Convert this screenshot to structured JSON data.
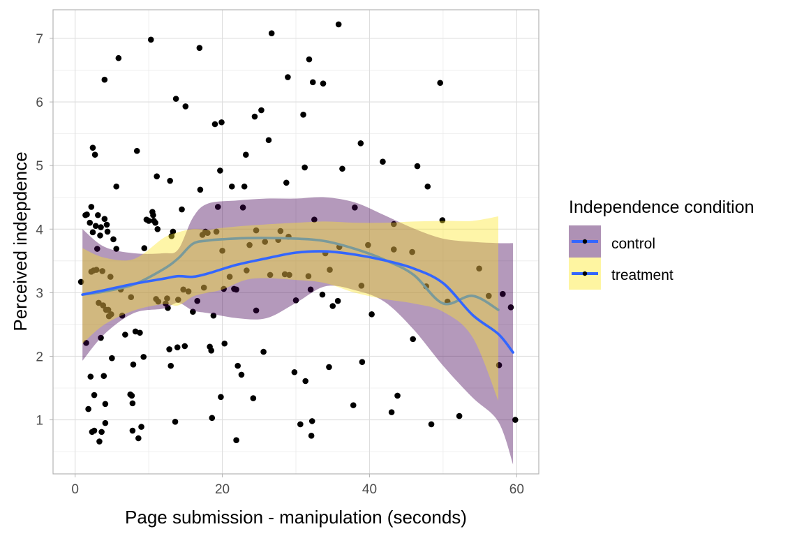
{
  "chart_data": {
    "type": "scatter",
    "xlabel": "Page submission - manipulation (seconds)",
    "ylabel": "Perceived indepdence",
    "xlim": [
      -3,
      63
    ],
    "ylim": [
      0.15,
      7.45
    ],
    "x_ticks": [
      0,
      20,
      40,
      60
    ],
    "y_ticks": [
      1,
      2,
      3,
      4,
      5,
      6,
      7
    ],
    "x_tick_labels": [
      "0",
      "20",
      "40",
      "60"
    ],
    "y_tick_labels": [
      "1",
      "2",
      "3",
      "4",
      "5",
      "6",
      "7"
    ],
    "grid": true,
    "legend": {
      "title": "Independence condition",
      "position": "right",
      "entries": [
        {
          "label": "control",
          "fill": "#440154",
          "fill_opacity": 0.43,
          "line_color": "#3366ff"
        },
        {
          "label": "treatment",
          "fill": "#fde725",
          "fill_opacity": 0.43,
          "line_color": "#3366ff"
        }
      ]
    },
    "point_color": "#000000",
    "points": [
      [
        0.8,
        3.17
      ],
      [
        1.4,
        4.22
      ],
      [
        1.5,
        2.21
      ],
      [
        1.6,
        4.23
      ],
      [
        1.8,
        1.17
      ],
      [
        2.0,
        4.1
      ],
      [
        2.1,
        1.68
      ],
      [
        2.2,
        4.35
      ],
      [
        2.2,
        3.33
      ],
      [
        2.3,
        0.81
      ],
      [
        2.4,
        3.95
      ],
      [
        2.4,
        5.28
      ],
      [
        2.5,
        3.35
      ],
      [
        2.6,
        1.39
      ],
      [
        2.6,
        0.83
      ],
      [
        2.7,
        5.17
      ],
      [
        2.8,
        4.05
      ],
      [
        2.9,
        3.36
      ],
      [
        3.0,
        3.69
      ],
      [
        3.1,
        4.22
      ],
      [
        3.2,
        2.84
      ],
      [
        3.3,
        0.66
      ],
      [
        3.4,
        3.9
      ],
      [
        3.5,
        4.03
      ],
      [
        3.5,
        2.29
      ],
      [
        3.6,
        0.81
      ],
      [
        3.7,
        3.34
      ],
      [
        3.8,
        2.8
      ],
      [
        3.9,
        1.69
      ],
      [
        4.0,
        4.16
      ],
      [
        4.0,
        6.35
      ],
      [
        4.1,
        0.95
      ],
      [
        4.1,
        1.25
      ],
      [
        4.2,
        2.73
      ],
      [
        4.3,
        4.07
      ],
      [
        4.4,
        3.96
      ],
      [
        4.5,
        2.73
      ],
      [
        4.6,
        2.63
      ],
      [
        4.8,
        3.25
      ],
      [
        4.9,
        2.66
      ],
      [
        5.0,
        1.97
      ],
      [
        5.2,
        3.84
      ],
      [
        5.6,
        3.69
      ],
      [
        5.6,
        4.67
      ],
      [
        5.9,
        6.69
      ],
      [
        6.2,
        3.05
      ],
      [
        6.4,
        2.64
      ],
      [
        6.8,
        2.34
      ],
      [
        7.5,
        1.4
      ],
      [
        7.6,
        2.93
      ],
      [
        7.7,
        1.38
      ],
      [
        7.8,
        0.83
      ],
      [
        7.8,
        1.26
      ],
      [
        7.9,
        1.87
      ],
      [
        8.2,
        2.39
      ],
      [
        8.4,
        5.23
      ],
      [
        8.6,
        0.71
      ],
      [
        8.8,
        2.37
      ],
      [
        9.0,
        0.89
      ],
      [
        9.3,
        1.99
      ],
      [
        9.4,
        3.7
      ],
      [
        9.7,
        4.15
      ],
      [
        10.0,
        4.13
      ],
      [
        10.3,
        6.98
      ],
      [
        10.5,
        4.27
      ],
      [
        10.6,
        4.22
      ],
      [
        10.7,
        4.13
      ],
      [
        10.9,
        4.1
      ],
      [
        11.0,
        2.9
      ],
      [
        11.1,
        4.83
      ],
      [
        11.2,
        4.0
      ],
      [
        11.3,
        2.86
      ],
      [
        12.3,
        2.83
      ],
      [
        12.5,
        2.91
      ],
      [
        12.6,
        2.76
      ],
      [
        12.8,
        2.11
      ],
      [
        12.9,
        4.76
      ],
      [
        13.0,
        1.85
      ],
      [
        13.1,
        3.89
      ],
      [
        13.3,
        3.96
      ],
      [
        13.6,
        0.97
      ],
      [
        13.7,
        6.05
      ],
      [
        13.9,
        2.14
      ],
      [
        14.0,
        2.89
      ],
      [
        14.5,
        4.31
      ],
      [
        14.7,
        3.05
      ],
      [
        14.9,
        2.16
      ],
      [
        15.0,
        5.93
      ],
      [
        15.4,
        3.02
      ],
      [
        16.0,
        2.7
      ],
      [
        16.6,
        2.87
      ],
      [
        16.9,
        6.85
      ],
      [
        17.0,
        4.62
      ],
      [
        17.3,
        3.91
      ],
      [
        17.5,
        3.08
      ],
      [
        17.7,
        3.96
      ],
      [
        18.0,
        3.94
      ],
      [
        18.3,
        2.15
      ],
      [
        18.5,
        2.09
      ],
      [
        18.6,
        1.03
      ],
      [
        18.8,
        2.64
      ],
      [
        19.0,
        5.65
      ],
      [
        19.2,
        3.96
      ],
      [
        19.4,
        4.35
      ],
      [
        19.7,
        4.92
      ],
      [
        19.8,
        1.36
      ],
      [
        19.9,
        5.68
      ],
      [
        20.0,
        3.66
      ],
      [
        20.2,
        3.06
      ],
      [
        20.3,
        2.2
      ],
      [
        21.0,
        3.25
      ],
      [
        21.3,
        4.67
      ],
      [
        21.6,
        3.06
      ],
      [
        21.9,
        3.05
      ],
      [
        21.9,
        0.68
      ],
      [
        22.1,
        1.85
      ],
      [
        22.6,
        1.71
      ],
      [
        22.8,
        4.34
      ],
      [
        23.0,
        4.67
      ],
      [
        23.2,
        5.17
      ],
      [
        23.3,
        3.35
      ],
      [
        23.7,
        3.75
      ],
      [
        24.2,
        1.34
      ],
      [
        24.4,
        5.77
      ],
      [
        24.6,
        2.72
      ],
      [
        24.6,
        3.98
      ],
      [
        25.3,
        5.87
      ],
      [
        25.6,
        2.07
      ],
      [
        25.8,
        3.8
      ],
      [
        26.3,
        5.4
      ],
      [
        26.5,
        3.28
      ],
      [
        26.7,
        7.08
      ],
      [
        27.6,
        3.83
      ],
      [
        27.9,
        3.97
      ],
      [
        28.5,
        3.29
      ],
      [
        28.7,
        4.73
      ],
      [
        28.9,
        6.39
      ],
      [
        29.0,
        3.88
      ],
      [
        29.1,
        3.28
      ],
      [
        29.8,
        1.75
      ],
      [
        30.0,
        2.88
      ],
      [
        30.6,
        0.93
      ],
      [
        31.0,
        5.8
      ],
      [
        31.2,
        4.97
      ],
      [
        31.3,
        1.61
      ],
      [
        31.7,
        3.26
      ],
      [
        31.8,
        6.67
      ],
      [
        32.0,
        3.05
      ],
      [
        32.1,
        0.75
      ],
      [
        32.2,
        0.98
      ],
      [
        32.3,
        6.31
      ],
      [
        32.5,
        4.15
      ],
      [
        33.6,
        2.97
      ],
      [
        33.7,
        6.29
      ],
      [
        34.0,
        3.62
      ],
      [
        34.5,
        1.83
      ],
      [
        34.6,
        3.36
      ],
      [
        35.0,
        2.79
      ],
      [
        35.7,
        2.87
      ],
      [
        35.8,
        7.22
      ],
      [
        35.9,
        3.72
      ],
      [
        36.3,
        4.95
      ],
      [
        37.8,
        1.23
      ],
      [
        38.0,
        4.34
      ],
      [
        38.8,
        5.35
      ],
      [
        38.9,
        3.11
      ],
      [
        39.0,
        1.91
      ],
      [
        39.8,
        3.75
      ],
      [
        40.3,
        2.66
      ],
      [
        41.8,
        5.06
      ],
      [
        43.0,
        1.12
      ],
      [
        43.3,
        3.68
      ],
      [
        43.3,
        4.08
      ],
      [
        43.8,
        1.38
      ],
      [
        45.8,
        3.64
      ],
      [
        45.9,
        2.27
      ],
      [
        46.5,
        4.99
      ],
      [
        47.7,
        3.1
      ],
      [
        47.9,
        4.67
      ],
      [
        48.4,
        0.93
      ],
      [
        49.6,
        6.3
      ],
      [
        49.9,
        4.14
      ],
      [
        50.6,
        2.86
      ],
      [
        52.2,
        1.06
      ],
      [
        54.9,
        3.38
      ],
      [
        56.2,
        2.95
      ],
      [
        57.6,
        1.86
      ],
      [
        58.1,
        2.98
      ],
      [
        59.2,
        2.77
      ],
      [
        59.8,
        1.0
      ]
    ],
    "series": [
      {
        "name": "control",
        "x": [
          1,
          4,
          8,
          12,
          14,
          16,
          18,
          22,
          26,
          30,
          34,
          38,
          42,
          46,
          50,
          54,
          57.5,
          59.5
        ],
        "fit": [
          2.97,
          3.04,
          3.14,
          3.22,
          3.26,
          3.25,
          3.3,
          3.44,
          3.54,
          3.63,
          3.65,
          3.6,
          3.51,
          3.38,
          3.15,
          2.65,
          2.35,
          2.06
        ],
        "lower": [
          1.93,
          2.35,
          2.68,
          2.75,
          2.84,
          2.72,
          2.68,
          2.6,
          2.6,
          2.84,
          3.1,
          3.04,
          2.86,
          2.42,
          1.85,
          1.35,
          0.97,
          0.3
        ],
        "upper": [
          4.0,
          3.72,
          3.62,
          3.62,
          3.68,
          4.18,
          4.4,
          4.45,
          4.48,
          4.48,
          4.5,
          4.42,
          4.22,
          4.01,
          3.85,
          3.8,
          3.78,
          3.78
        ],
        "fill": "#440154",
        "line_color": "#3366ff"
      },
      {
        "name": "treatment",
        "x": [
          1,
          4,
          8,
          12,
          14,
          16,
          18,
          20,
          24,
          30,
          34,
          38,
          42,
          46,
          50,
          54,
          57.5
        ],
        "fit": [
          2.97,
          3.02,
          3.13,
          3.37,
          3.54,
          3.77,
          3.82,
          3.84,
          3.86,
          3.85,
          3.81,
          3.69,
          3.52,
          3.28,
          2.83,
          2.95,
          2.73
        ],
        "lower": [
          2.2,
          2.5,
          2.72,
          2.82,
          2.8,
          2.94,
          3.0,
          3.05,
          3.22,
          3.2,
          3.15,
          3.0,
          2.9,
          2.83,
          2.7,
          2.3,
          1.3
        ],
        "upper": [
          3.7,
          3.55,
          3.53,
          3.86,
          3.95,
          4.0,
          3.99,
          4.02,
          4.06,
          4.1,
          4.12,
          4.1,
          4.1,
          4.12,
          4.13,
          4.13,
          4.2
        ],
        "fill": "#fde725",
        "line_color": "#3366ff"
      }
    ],
    "treatment_line_color": "#7a9a9a"
  }
}
